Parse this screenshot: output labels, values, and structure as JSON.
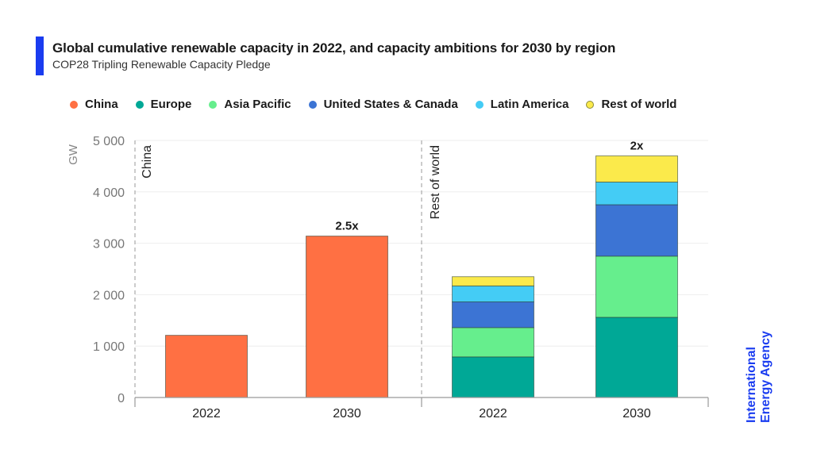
{
  "header": {
    "title": "Global cumulative renewable capacity in 2022, and capacity ambitions for 2030 by region",
    "subtitle": "COP28 Tripling Renewable Capacity Pledge",
    "accent_color": "#1a3cf0"
  },
  "logo": {
    "line1": "International",
    "line2": "Energy Agency",
    "color": "#1a3cf0"
  },
  "chart_data": {
    "type": "bar",
    "stacked": true,
    "title": "Global cumulative renewable capacity in 2022, and capacity ambitions for 2030 by region",
    "subtitle": "COP28 Tripling Renewable Capacity Pledge",
    "ylabel": "GW",
    "xlabel": "",
    "ylim": [
      0,
      5000
    ],
    "yticks": [
      0,
      1000,
      2000,
      3000,
      4000,
      5000
    ],
    "ytick_labels": [
      "0",
      "1 000",
      "2 000",
      "3 000",
      "4 000",
      "5 000"
    ],
    "grid": true,
    "legend_position": "top",
    "groups": [
      {
        "label": "China",
        "categories": [
          "2022",
          "2030"
        ]
      },
      {
        "label": "Rest of world",
        "categories": [
          "2022",
          "2030"
        ]
      }
    ],
    "categories": [
      "2022",
      "2030",
      "2022",
      "2030"
    ],
    "series": [
      {
        "name": "China",
        "color": "#ff7043",
        "values": [
          1210,
          3140,
          0,
          0
        ]
      },
      {
        "name": "Europe",
        "color": "#00a896",
        "values": [
          0,
          0,
          790,
          1560
        ]
      },
      {
        "name": "Asia Pacific",
        "color": "#66ee8d",
        "values": [
          0,
          0,
          570,
          1190
        ]
      },
      {
        "name": "United States & Canada",
        "color": "#3c74d4",
        "values": [
          0,
          0,
          500,
          1000
        ]
      },
      {
        "name": "Latin America",
        "color": "#44ccf5",
        "values": [
          0,
          0,
          310,
          440
        ]
      },
      {
        "name": "Rest of world",
        "color": "#fbea4b",
        "values": [
          0,
          0,
          180,
          510
        ]
      }
    ],
    "annotations": [
      {
        "category_index": 1,
        "text": "2.5x"
      },
      {
        "category_index": 3,
        "text": "2x"
      }
    ]
  }
}
